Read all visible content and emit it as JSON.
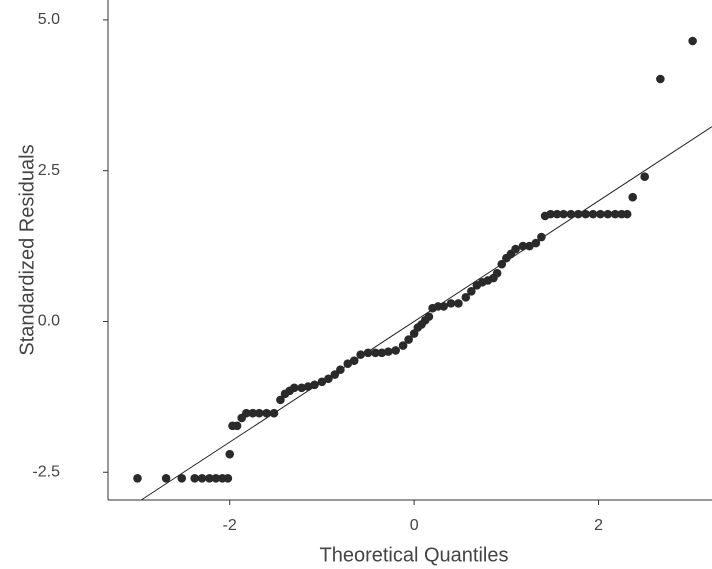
{
  "chart_data": {
    "type": "scatter",
    "x_label": "Theoretical Quantiles",
    "y_label": "Standardized Residuals",
    "xlim": [
      -3.32,
      3.23
    ],
    "ylim": [
      -2.96,
      5.33
    ],
    "xticks": [
      -2,
      0,
      2
    ],
    "yticks": [
      {
        "value": 5.0,
        "label": "5.0"
      },
      2.5,
      {
        "value": 0,
        "label": "0.0"
      },
      -2.5
    ],
    "reference_line": {
      "slope": 1,
      "intercept": 0,
      "color": "#222222"
    },
    "series": [
      {
        "color": "#2a2a2a",
        "x": [
          -3.0,
          -2.69,
          -2.52,
          -2.38,
          -2.3,
          -2.22,
          -2.15,
          -2.08,
          -2.02,
          -2.0,
          -1.97,
          -1.92,
          -1.87,
          -1.82,
          -1.75,
          -1.68,
          -1.6,
          -1.52,
          -1.45,
          -1.4,
          -1.35,
          -1.3,
          -1.22,
          -1.15,
          -1.08,
          -1.0,
          -0.93,
          -0.86,
          -0.8,
          -0.72,
          -0.65,
          -0.58,
          -0.5,
          -0.42,
          -0.35,
          -0.28,
          -0.2,
          -0.12,
          -0.06,
          0.0,
          0.04,
          0.08,
          0.12,
          0.16,
          0.2,
          0.26,
          0.32,
          0.4,
          0.48,
          0.56,
          0.62,
          0.68,
          0.74,
          0.8,
          0.86,
          0.9,
          0.95,
          1.0,
          1.05,
          1.1,
          1.18,
          1.25,
          1.32,
          1.38,
          1.42,
          1.48,
          1.55,
          1.62,
          1.7,
          1.78,
          1.86,
          1.94,
          2.02,
          2.1,
          2.18,
          2.25,
          2.31,
          2.37,
          2.5,
          2.67,
          3.02
        ],
        "y": [
          -2.6,
          -2.6,
          -2.6,
          -2.6,
          -2.6,
          -2.6,
          -2.6,
          -2.6,
          -2.6,
          -2.2,
          -1.73,
          -1.73,
          -1.6,
          -1.52,
          -1.52,
          -1.52,
          -1.52,
          -1.52,
          -1.3,
          -1.2,
          -1.15,
          -1.1,
          -1.1,
          -1.08,
          -1.05,
          -1.0,
          -0.95,
          -0.88,
          -0.8,
          -0.7,
          -0.65,
          -0.55,
          -0.52,
          -0.52,
          -0.52,
          -0.5,
          -0.48,
          -0.4,
          -0.3,
          -0.2,
          -0.1,
          -0.05,
          0.02,
          0.08,
          0.22,
          0.25,
          0.25,
          0.3,
          0.3,
          0.4,
          0.5,
          0.6,
          0.65,
          0.68,
          0.72,
          0.8,
          0.95,
          1.05,
          1.12,
          1.2,
          1.25,
          1.25,
          1.3,
          1.4,
          1.75,
          1.78,
          1.78,
          1.78,
          1.78,
          1.78,
          1.78,
          1.78,
          1.78,
          1.78,
          1.78,
          1.78,
          1.78,
          2.06,
          2.4,
          4.02,
          4.65
        ]
      }
    ]
  }
}
